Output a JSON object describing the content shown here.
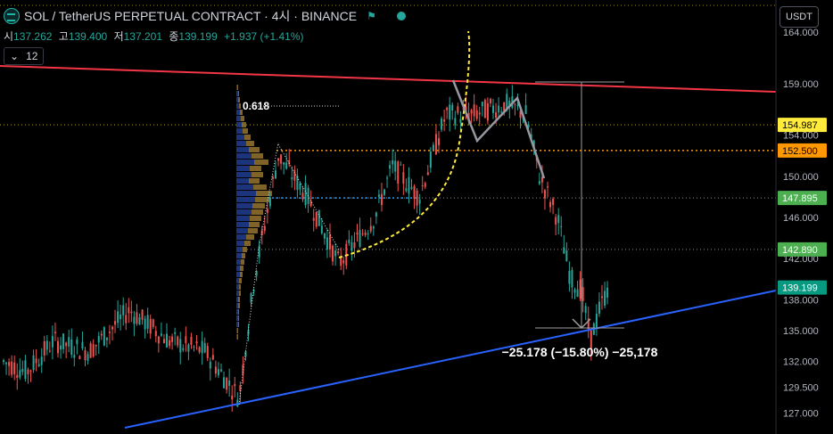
{
  "header": {
    "title": "SOL / TetherUS PERPETUAL CONTRACT · 4시 · BINANCE",
    "ohlc": [
      {
        "label": "시",
        "value": "137.262"
      },
      {
        "label": "고",
        "value": "139.400"
      },
      {
        "label": "저",
        "value": "137.201"
      },
      {
        "label": "종",
        "value": "139.199"
      },
      {
        "label": "",
        "value": "+1.937 (+1.41%)"
      }
    ],
    "indicator_value": "12"
  },
  "currency_button": "USDT",
  "chart_data": {
    "type": "candlestick",
    "y_axis": {
      "min": 125.4,
      "max": 166.6,
      "ticks": [
        "164.000",
        "159.000",
        "154.000",
        "150.000",
        "146.000",
        "142.000",
        "138.000",
        "135.000",
        "132.000",
        "129.500",
        "127.000"
      ]
    },
    "price_badges": [
      {
        "label": "154.987",
        "value": 154.987,
        "bg": "#ffeb3b",
        "fg": "#000000"
      },
      {
        "label": "152.500",
        "value": 152.5,
        "bg": "#ff9800",
        "fg": "#000000"
      },
      {
        "label": "147.895",
        "value": 147.895,
        "bg": "#4caf50",
        "fg": "#ffffff"
      },
      {
        "label": "142.890",
        "value": 142.89,
        "bg": "#4caf50",
        "fg": "#ffffff"
      },
      {
        "label": "139.199",
        "value": 139.199,
        "bg": "#089981",
        "fg": "#ffffff"
      }
    ],
    "fib_label": "0.618",
    "measure_label": "−25.178 (−15.80%) −25,178",
    "colors": {
      "up": "#26a69a",
      "down": "#ef5350",
      "resistance": "#f23645",
      "support": "#2962ff",
      "arc": "#ffeb3b",
      "zigzag": "#9598a1"
    }
  }
}
